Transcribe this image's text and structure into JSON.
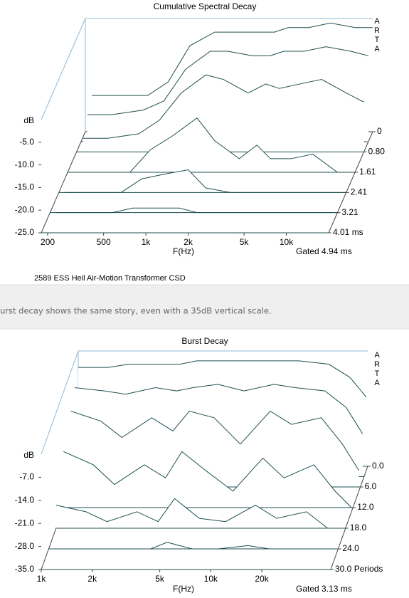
{
  "page": {
    "caption": "2589 ESS Heil Air-Motion Transformer CSD",
    "banner_text": "urst decay shows the same story, even with a 35dB vertical scale."
  },
  "chart_data": [
    {
      "type": "waterfall",
      "title": "Cumulative Spectral Decay",
      "brand": "ARTA",
      "x_label": "F(Hz)",
      "y_label": "dB",
      "note": "Gated 4.94 ms",
      "xscale": "log",
      "xlim": [
        180,
        20000
      ],
      "xticks": [
        200,
        500,
        {
          "value": 1000,
          "label": "1k"
        },
        {
          "value": 2000,
          "label": "2k"
        },
        {
          "value": 5000,
          "label": "5k"
        },
        {
          "value": 10000,
          "label": "10k"
        }
      ],
      "ylim": [
        -25,
        0
      ],
      "yticks": [
        {
          "value": -5,
          "label": "-5.0"
        },
        {
          "value": -10,
          "label": "-10.0"
        },
        {
          "value": -15,
          "label": "-15.0"
        },
        {
          "value": -20,
          "label": "-20.0"
        },
        {
          "value": -25,
          "label": "-25.0"
        }
      ],
      "zlim": [
        0,
        4.01
      ],
      "zticks": [
        0,
        {
          "value": 0.8,
          "label": "0.80"
        },
        1.61,
        2.41,
        3.21,
        {
          "value": 4.01,
          "label": "4.01 ms"
        }
      ],
      "color": "#1f4f4f",
      "x": [
        200,
        300,
        500,
        700,
        1000,
        1500,
        2000,
        3000,
        4000,
        5000,
        7000,
        10000,
        15000,
        20000
      ],
      "series": [
        {
          "z": 0,
          "values": [
            -17,
            -17,
            -17,
            -14,
            -6,
            -3,
            -3,
            -3,
            -3,
            -2,
            -2,
            -1,
            -2,
            -2
          ]
        },
        {
          "z": 0.4,
          "values": [
            -19,
            -19,
            -18,
            -16,
            -9,
            -5,
            -5,
            -6,
            -6,
            -5,
            -5,
            -4,
            -5,
            -6
          ]
        },
        {
          "z": 0.8,
          "values": [
            -22,
            -22,
            -21,
            -18,
            -12,
            -8,
            -9,
            -12,
            -10,
            -11,
            -10,
            -9,
            -12,
            -14
          ]
        },
        {
          "z": 1.61,
          "values": [
            -25,
            -25,
            -25,
            -20,
            -17,
            -13,
            -18,
            -22,
            -19,
            -22,
            -22,
            -21,
            -25,
            -25
          ]
        },
        {
          "z": 2.41,
          "values": [
            -25,
            -25,
            -25,
            -22,
            -21,
            -20,
            -24,
            -25,
            -25,
            -25,
            -25,
            -25,
            -25,
            -25
          ]
        },
        {
          "z": 3.21,
          "values": [
            -25,
            -25,
            -25,
            -24,
            -24,
            -24,
            -25,
            -25,
            -25,
            -25,
            -25,
            -25,
            -25,
            -25
          ]
        },
        {
          "z": 4.01,
          "values": [
            -25,
            -25,
            -25,
            -25,
            -25,
            -25,
            -25,
            -25,
            -25,
            -25,
            -25,
            -25,
            -25,
            -25
          ]
        }
      ]
    },
    {
      "type": "waterfall",
      "title": "Burst Decay",
      "brand": "ARTA",
      "x_label": "F(Hz)",
      "y_label": "dB",
      "note": "Gated 3.13 ms",
      "xscale": "log",
      "xlim": [
        1000,
        51000
      ],
      "xticks": [
        {
          "value": 1000,
          "label": "1k"
        },
        {
          "value": 2000,
          "label": "2k"
        },
        {
          "value": 5000,
          "label": "5k"
        },
        {
          "value": 10000,
          "label": "10k"
        },
        {
          "value": 20000,
          "label": "20k"
        }
      ],
      "ylim": [
        -35,
        0
      ],
      "yticks": [
        {
          "value": -7,
          "label": "-7.0"
        },
        {
          "value": -14,
          "label": "-14.0"
        },
        {
          "value": -21,
          "label": "-21.0"
        },
        {
          "value": -28,
          "label": "-28.0"
        },
        {
          "value": -35,
          "label": "-35.0"
        }
      ],
      "zlim": [
        0,
        30
      ],
      "zticks": [
        {
          "value": 0,
          "label": "0.0"
        },
        {
          "value": 6,
          "label": "6.0"
        },
        {
          "value": 12,
          "label": "12.0"
        },
        {
          "value": 18,
          "label": "18.0"
        },
        {
          "value": 24,
          "label": "24.0"
        },
        {
          "value": 30,
          "label": "30.0 Periods"
        }
      ],
      "color": "#1f4f4f",
      "x": [
        1000,
        1500,
        2000,
        3000,
        4000,
        5000,
        7000,
        10000,
        15000,
        20000,
        30000,
        40000,
        50000
      ],
      "series": [
        {
          "z": 0,
          "values": [
            -5,
            -5,
            -4,
            -4,
            -4,
            -3,
            -3,
            -3,
            -3,
            -3,
            -4,
            -8,
            -14
          ]
        },
        {
          "z": 3,
          "values": [
            -8,
            -9,
            -10,
            -8,
            -9,
            -8,
            -7,
            -9,
            -7,
            -8,
            -9,
            -14,
            -22
          ]
        },
        {
          "z": 6,
          "values": [
            -12,
            -15,
            -20,
            -14,
            -18,
            -12,
            -14,
            -22,
            -12,
            -16,
            -14,
            -22,
            -30
          ]
        },
        {
          "z": 12,
          "values": [
            -18,
            -22,
            -28,
            -22,
            -26,
            -18,
            -24,
            -30,
            -20,
            -26,
            -22,
            -30,
            -35
          ]
        },
        {
          "z": 18,
          "values": [
            -28,
            -30,
            -33,
            -30,
            -33,
            -26,
            -32,
            -33,
            -28,
            -32,
            -30,
            -35,
            -35
          ]
        },
        {
          "z": 24,
          "values": [
            -35,
            -35,
            -35,
            -35,
            -35,
            -33,
            -35,
            -35,
            -34,
            -35,
            -35,
            -35,
            -35
          ]
        },
        {
          "z": 30,
          "values": [
            -35,
            -35,
            -35,
            -35,
            -35,
            -35,
            -35,
            -35,
            -35,
            -35,
            -35,
            -35,
            -35
          ]
        }
      ]
    }
  ]
}
